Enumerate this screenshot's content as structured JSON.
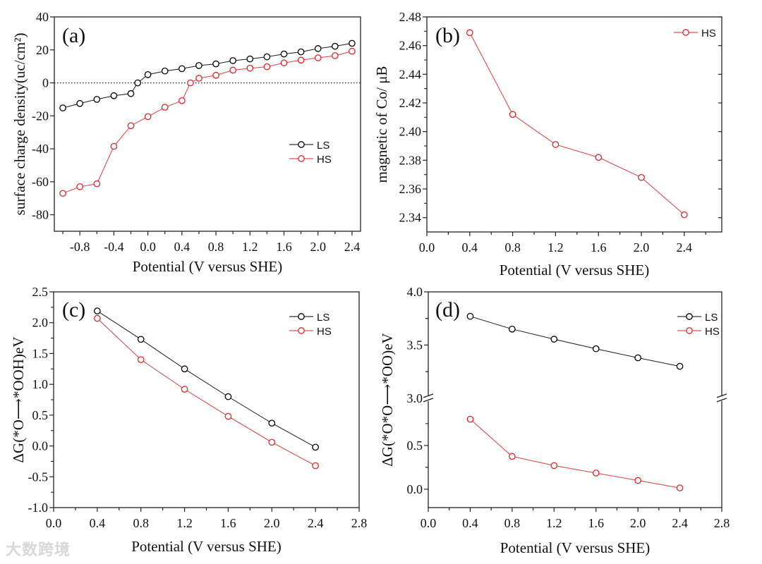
{
  "watermark": "大数跨境",
  "chart_data": [
    {
      "panel_label": "(a)",
      "type": "line",
      "xlabel": "Potential (V versus SHE)",
      "ylabel": "surface charge density(uc/cm²)",
      "xlim": [
        -1.1,
        2.5
      ],
      "ylim": [
        -90,
        40
      ],
      "xticks": [
        -0.8,
        -0.4,
        0.0,
        0.4,
        0.8,
        1.2,
        1.6,
        2.0,
        2.4
      ],
      "xtick_labels": [
        "-0.8",
        "-0.4",
        "0.0",
        "0.4",
        "0.8",
        "1.2",
        "1.6",
        "2.0",
        "2.4"
      ],
      "yticks": [
        40,
        20,
        0,
        -20,
        -40,
        -60,
        -80
      ],
      "ytick_labels": [
        "40",
        "20",
        "0",
        "-20",
        "-40",
        "-60",
        "-80"
      ],
      "reference_line_y": 0,
      "legend_position": "center-right",
      "series": [
        {
          "name": "LS",
          "color": "#000000",
          "x": [
            -1.0,
            -0.8,
            -0.6,
            -0.4,
            -0.2,
            -0.12,
            0.0,
            0.2,
            0.4,
            0.6,
            0.8,
            1.0,
            1.2,
            1.4,
            1.6,
            1.8,
            2.0,
            2.2,
            2.4
          ],
          "y": [
            -15.2,
            -12.5,
            -10.0,
            -7.8,
            -6.5,
            0.0,
            5.0,
            7.2,
            8.6,
            10.5,
            11.5,
            13.5,
            14.5,
            15.8,
            17.5,
            18.8,
            20.8,
            22.2,
            24.0
          ]
        },
        {
          "name": "HS",
          "color": "#e0262b",
          "x": [
            -1.0,
            -0.8,
            -0.6,
            -0.4,
            -0.2,
            0.0,
            0.2,
            0.4,
            0.5,
            0.6,
            0.8,
            1.0,
            1.2,
            1.4,
            1.6,
            1.8,
            2.0,
            2.2,
            2.4
          ],
          "y": [
            -67.0,
            -63.0,
            -61.2,
            -38.5,
            -26.0,
            -20.5,
            -14.8,
            -10.8,
            0.0,
            2.8,
            4.6,
            7.7,
            8.9,
            9.8,
            12.1,
            13.8,
            15.2,
            16.5,
            19.2
          ]
        }
      ]
    },
    {
      "panel_label": "(b)",
      "type": "line",
      "xlabel": "Potential (V versus SHE)",
      "ylabel": "magnetic of Co/ μB",
      "xlim": [
        0,
        2.75
      ],
      "ylim": [
        2.33,
        2.48
      ],
      "xticks": [
        0.0,
        0.4,
        0.8,
        1.2,
        1.6,
        2.0,
        2.4
      ],
      "xtick_labels": [
        "0.0",
        "0.4",
        "0.8",
        "1.2",
        "1.6",
        "2.0",
        "2.4"
      ],
      "yticks": [
        2.48,
        2.46,
        2.44,
        2.42,
        2.4,
        2.38,
        2.36,
        2.34
      ],
      "ytick_labels": [
        "2.48",
        "2.46",
        "2.44",
        "2.42",
        "2.40",
        "2.38",
        "2.36",
        "2.34"
      ],
      "legend_position": "top-right",
      "series": [
        {
          "name": "HS",
          "color": "#e0262b",
          "x": [
            0.4,
            0.8,
            1.2,
            1.6,
            2.0,
            2.4
          ],
          "y": [
            2.469,
            2.412,
            2.391,
            2.382,
            2.368,
            2.342
          ]
        }
      ]
    },
    {
      "panel_label": "(c)",
      "type": "line",
      "xlabel": "Potential (V versus SHE)",
      "ylabel": "ΔG(*O⟶*OOH)eV",
      "xlim": [
        0,
        2.8
      ],
      "ylim": [
        -1.0,
        2.5
      ],
      "xticks": [
        0.0,
        0.4,
        0.8,
        1.2,
        1.6,
        2.0,
        2.4,
        2.8
      ],
      "xtick_labels": [
        "0.0",
        "0.4",
        "0.8",
        "1.2",
        "1.6",
        "2.0",
        "2.4",
        "2.8"
      ],
      "yticks": [
        2.5,
        2.0,
        1.5,
        1.0,
        0.5,
        0.0,
        -0.5,
        -1.0
      ],
      "ytick_labels": [
        "2.5",
        "2.0",
        "1.5",
        "1.0",
        "0.5",
        "0.0",
        "-0.5",
        "-1.0"
      ],
      "legend_position": "top-right",
      "series": [
        {
          "name": "LS",
          "color": "#000000",
          "x": [
            0.4,
            0.8,
            1.2,
            1.6,
            2.0,
            2.4
          ],
          "y": [
            2.19,
            1.73,
            1.25,
            0.8,
            0.37,
            -0.02
          ]
        },
        {
          "name": "HS",
          "color": "#e0262b",
          "x": [
            0.4,
            0.8,
            1.2,
            1.6,
            2.0,
            2.4
          ],
          "y": [
            2.07,
            1.4,
            0.92,
            0.48,
            0.06,
            -0.32
          ]
        }
      ]
    },
    {
      "panel_label": "(d)",
      "type": "line",
      "xlabel": "Potential (V versus SHE)",
      "ylabel": "ΔG(*O*O⟶*OO)eV",
      "xlim": [
        0,
        2.8
      ],
      "ylim": [
        -0.21,
        4.0
      ],
      "y_break": [
        1.04,
        3.0
      ],
      "xticks": [
        0.0,
        0.4,
        0.8,
        1.2,
        1.6,
        2.0,
        2.4,
        2.8
      ],
      "xtick_labels": [
        "0.0",
        "0.4",
        "0.8",
        "1.2",
        "1.6",
        "2.0",
        "2.4",
        "2.8"
      ],
      "yticks": [
        4.0,
        3.5,
        3.0,
        0.5,
        0.0
      ],
      "ytick_labels": [
        "4.0",
        "3.5",
        "3.0",
        "0.5",
        "0.0"
      ],
      "legend_position": "top-right",
      "series": [
        {
          "name": "LS",
          "color": "#000000",
          "x": [
            0.4,
            0.8,
            1.2,
            1.6,
            2.0,
            2.4
          ],
          "y": [
            3.77,
            3.65,
            3.555,
            3.465,
            3.38,
            3.3
          ]
        },
        {
          "name": "HS",
          "color": "#e0262b",
          "x": [
            0.4,
            0.8,
            1.2,
            1.6,
            2.0,
            2.4
          ],
          "y": [
            0.8,
            0.375,
            0.27,
            0.185,
            0.1,
            0.015
          ]
        }
      ]
    }
  ]
}
